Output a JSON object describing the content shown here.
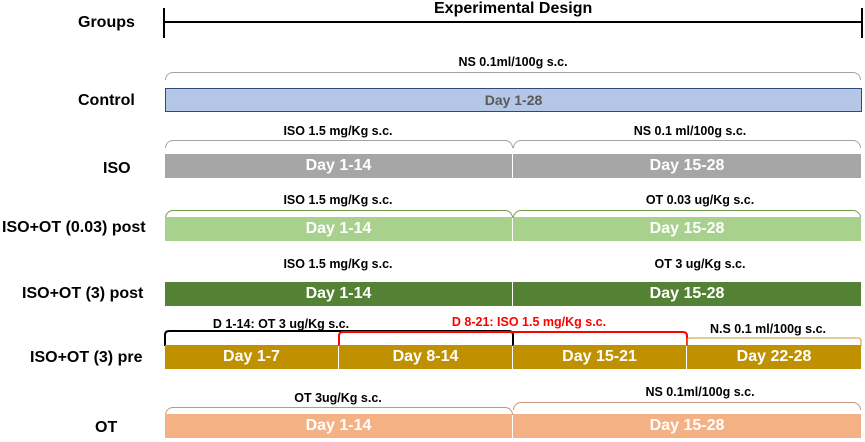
{
  "header": {
    "groups_label": "Groups",
    "design_label": "Experimental Design"
  },
  "colors": {
    "control": "#b4c7e7",
    "iso": "#a6a6a6",
    "iso_ot_003_post": "#a9d18e",
    "iso_ot_3_post": "#548235",
    "iso_ot_3_pre": "#bf9000",
    "ot": "#f4b183",
    "red_note": "#ff0000"
  },
  "groups": [
    {
      "name": "Control",
      "notes": [
        "NS  0.1ml/100g  s.c."
      ],
      "bars": [
        "Day 1-28"
      ]
    },
    {
      "name": "ISO",
      "notes": [
        "ISO 1.5 mg/Kg  s.c.",
        "NS 0.1 ml/100g  s.c."
      ],
      "bars": [
        "Day 1-14",
        "Day 15-28"
      ]
    },
    {
      "name": "ISO+OT (0.03) post",
      "notes": [
        "ISO 1.5 mg/Kg  s.c.",
        "OT 0.03 ug/Kg  s.c."
      ],
      "bars": [
        "Day 1-14",
        "Day 15-28"
      ]
    },
    {
      "name": "ISO+OT (3) post",
      "notes": [
        "ISO 1.5 mg/Kg  s.c.",
        "OT 3 ug/Kg  s.c."
      ],
      "bars": [
        "Day 1-14",
        "Day 15-28"
      ]
    },
    {
      "name": "ISO+OT (3) pre",
      "notes": [
        "D 1-14: OT 3 ug/Kg s.c.",
        "D 8-21: ISO 1.5 mg/Kg s.c.",
        "N.S 0.1 ml/100g  s.c."
      ],
      "bars": [
        "Day 1-7",
        "Day 8-14",
        "Day 15-21",
        "Day 22-28"
      ]
    },
    {
      "name": "OT",
      "notes": [
        "OT  3ug/Kg  s.c.",
        "NS  0.1ml/100g  s.c."
      ],
      "bars": [
        "Day 1-14",
        "Day 15-28"
      ]
    }
  ]
}
